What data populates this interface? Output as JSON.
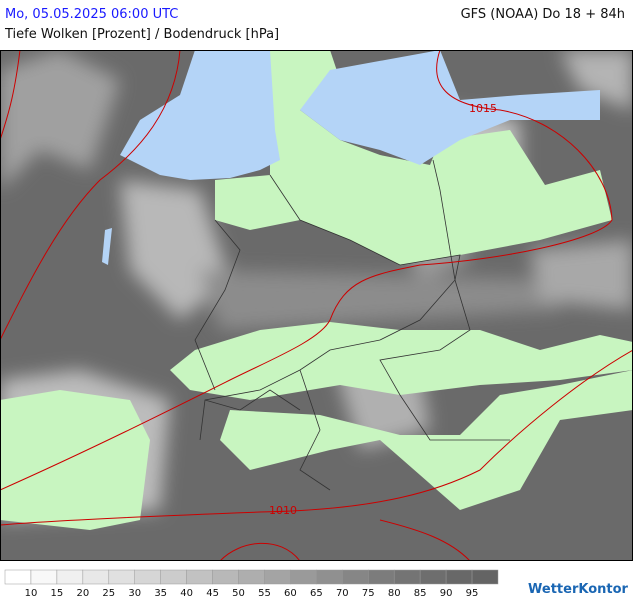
{
  "header": {
    "datetime": "Mo, 05.05.2025 06:00 UTC",
    "model": "GFS (NOAA) Do 18 + 84h",
    "subtitle": "Tiefe Wolken [Prozent] / Bodendruck [hPa]"
  },
  "map": {
    "isobars": [
      "1015",
      "1010"
    ]
  },
  "legend": {
    "labels": [
      10,
      15,
      20,
      25,
      30,
      35,
      40,
      45,
      50,
      55,
      60,
      65,
      70,
      75,
      80,
      85,
      90,
      95
    ],
    "colors": [
      "#ffffff",
      "#f8f8f8",
      "#f0f0f0",
      "#e8e8e8",
      "#e0e0e0",
      "#d6d6d6",
      "#cccccc",
      "#c2c2c2",
      "#b8b8b8",
      "#aeaeae",
      "#a4a4a4",
      "#9a9a9a",
      "#909090",
      "#868686",
      "#7c7c7c",
      "#747474",
      "#6e6e6e",
      "#686868",
      "#646464"
    ]
  },
  "logo": "WetterKontor"
}
